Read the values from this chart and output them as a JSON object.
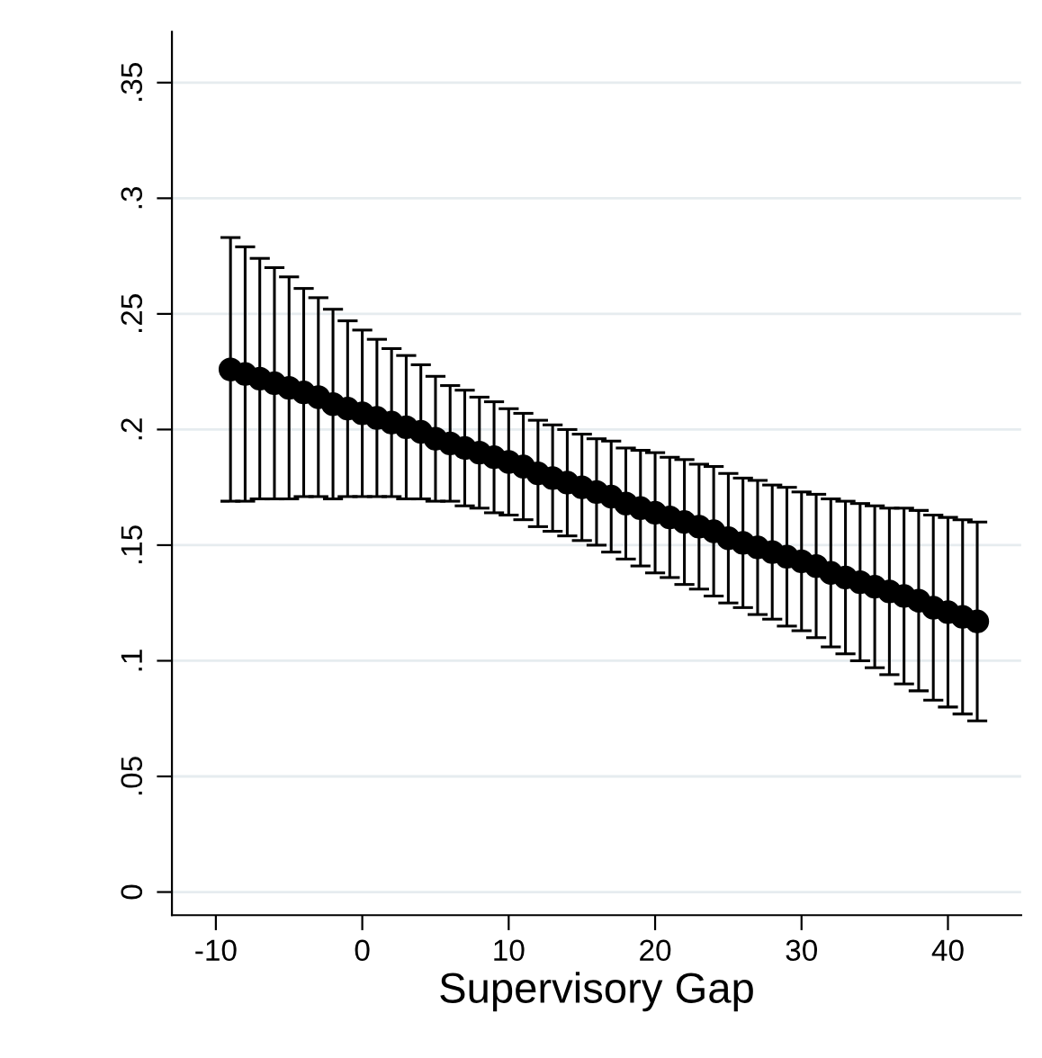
{
  "chart_data": {
    "type": "scatter",
    "xlabel": "Supervisory Gap",
    "x": [
      -9,
      -8,
      -7,
      -6,
      -5,
      -4,
      -3,
      -2,
      -1,
      0,
      1,
      2,
      3,
      4,
      5,
      6,
      7,
      8,
      9,
      10,
      11,
      12,
      13,
      14,
      15,
      16,
      17,
      18,
      19,
      20,
      21,
      22,
      23,
      24,
      25,
      26,
      27,
      28,
      29,
      30,
      31,
      32,
      33,
      34,
      35,
      36,
      37,
      38,
      39,
      40,
      41,
      42
    ],
    "series": [
      {
        "color": "#000000",
        "values": [
          0.226,
          0.224,
          0.222,
          0.22,
          0.218,
          0.216,
          0.214,
          0.211,
          0.209,
          0.207,
          0.205,
          0.203,
          0.201,
          0.199,
          0.196,
          0.194,
          0.192,
          0.19,
          0.188,
          0.186,
          0.184,
          0.181,
          0.179,
          0.177,
          0.175,
          0.173,
          0.171,
          0.168,
          0.166,
          0.164,
          0.162,
          0.16,
          0.158,
          0.156,
          0.153,
          0.151,
          0.149,
          0.147,
          0.145,
          0.143,
          0.141,
          0.138,
          0.136,
          0.134,
          0.132,
          0.13,
          0.128,
          0.126,
          0.123,
          0.121,
          0.119,
          0.117
        ],
        "errors": [
          0.057,
          0.055,
          0.052,
          0.05,
          0.048,
          0.045,
          0.043,
          0.041,
          0.038,
          0.036,
          0.034,
          0.032,
          0.031,
          0.029,
          0.027,
          0.025,
          0.025,
          0.024,
          0.024,
          0.023,
          0.023,
          0.023,
          0.023,
          0.023,
          0.023,
          0.023,
          0.024,
          0.024,
          0.025,
          0.026,
          0.026,
          0.027,
          0.027,
          0.028,
          0.028,
          0.028,
          0.029,
          0.029,
          0.03,
          0.03,
          0.031,
          0.032,
          0.033,
          0.034,
          0.035,
          0.036,
          0.038,
          0.039,
          0.04,
          0.041,
          0.042,
          0.043
        ]
      }
    ],
    "marker": "circle",
    "grid": "y",
    "xlim": [
      -13,
      45
    ],
    "xticks": [
      -10,
      0,
      10,
      20,
      30,
      40
    ],
    "ylim": [
      -0.01,
      0.372
    ],
    "yticks": [
      0,
      {
        "value": 0.05,
        "label": ".05"
      },
      {
        "value": 0.1,
        "label": ".1"
      },
      {
        "value": 0.15,
        "label": ".15"
      },
      {
        "value": 0.2,
        "label": ".2"
      },
      {
        "value": 0.25,
        "label": ".25"
      },
      {
        "value": 0.3,
        "label": ".3"
      },
      {
        "value": 0.35,
        "label": ".35"
      }
    ]
  }
}
